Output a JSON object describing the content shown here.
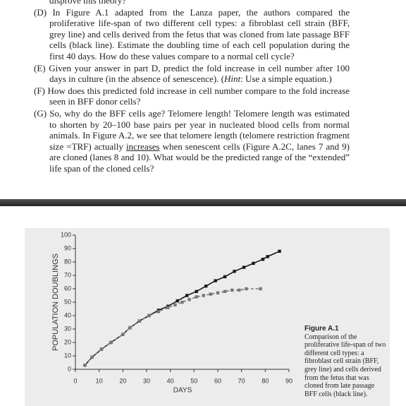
{
  "header": {
    "cut_line": "disprove this theory?"
  },
  "questions": [
    {
      "label": "(D)",
      "parts": [
        "In Figure A.1 adapted from the Lanza paper, the authors compared the proliferative life-span of two different cell types: a fibroblast cell strain (BFF, grey line) and cells derived from the fetus that was cloned from late passage BFF cells (black line). Estimate the doubling time of each cell population during the first 40 days. How do these values compare to a normal cell cycle?"
      ]
    },
    {
      "label": "(E)",
      "parts": [
        "Given your answer in part D, predict the fold increase in cell number after 100 days in culture (in the absence of senescence). (",
        "Hint",
        ": Use a simple equation.)"
      ]
    },
    {
      "label": "(F)",
      "parts": [
        "How does this predicted fold increase in cell number compare to the fold increase seen in BFF donor cells?"
      ]
    },
    {
      "label": "(G)",
      "parts": [
        "So, why do the BFF cells age? Telomere length! Telomere length was estimated to shorten by 20–100 base pairs per year in nucleated blood cells from normal animals. In Figure A.2, we see that telomere length (telomere restriction fragment size =TRF) actually ",
        "increases",
        " when senescent cells (Figure A.2C, lanes 7 and 9) are cloned (lanes 8 and 10). What would be the predicted range of the “extended” life span of the cloned cells?"
      ]
    }
  ],
  "figure": {
    "caption_title": "Figure A.1",
    "caption_text": "Comparison of the proliferative life-span of two different cell types: a fibroblast cell strain (BFF, grey line) and cells derived from the fetus that was cloned from late passage BFF cells (black line)."
  },
  "chart_data": {
    "type": "line",
    "x_label": "DAYS",
    "y_label": "POPULATION DOUBLINGS",
    "xlim": [
      0,
      90
    ],
    "xticks": [
      0,
      10,
      20,
      30,
      40,
      50,
      60,
      70,
      80,
      90
    ],
    "ylim": [
      0,
      100
    ],
    "yticks": [
      0,
      10,
      20,
      30,
      40,
      50,
      60,
      70,
      80,
      90,
      100
    ],
    "series": [
      {
        "color": "#1a1a1a",
        "style": "solid",
        "x": [
          4,
          7,
          11,
          15,
          20,
          23,
          27,
          31,
          35,
          39,
          43,
          47,
          51,
          55,
          59,
          63,
          67,
          71,
          75,
          79,
          81,
          86
        ],
        "values": [
          3,
          9,
          15,
          20,
          26,
          31,
          36,
          40,
          44,
          47,
          51,
          55,
          58,
          62,
          66,
          69,
          73,
          76,
          79,
          82,
          84,
          88
        ]
      },
      {
        "color": "#777777",
        "style": "dashed",
        "x": [
          4,
          7,
          11,
          15,
          20,
          23,
          27,
          31,
          35,
          39,
          42,
          45,
          48,
          51,
          54,
          57,
          60,
          63,
          66,
          69,
          72,
          78
        ],
        "values": [
          3,
          9,
          15,
          20,
          26,
          31,
          36,
          40,
          43,
          46,
          48,
          50,
          52,
          54,
          55,
          56,
          57,
          58,
          59,
          59,
          60,
          60
        ]
      }
    ]
  }
}
